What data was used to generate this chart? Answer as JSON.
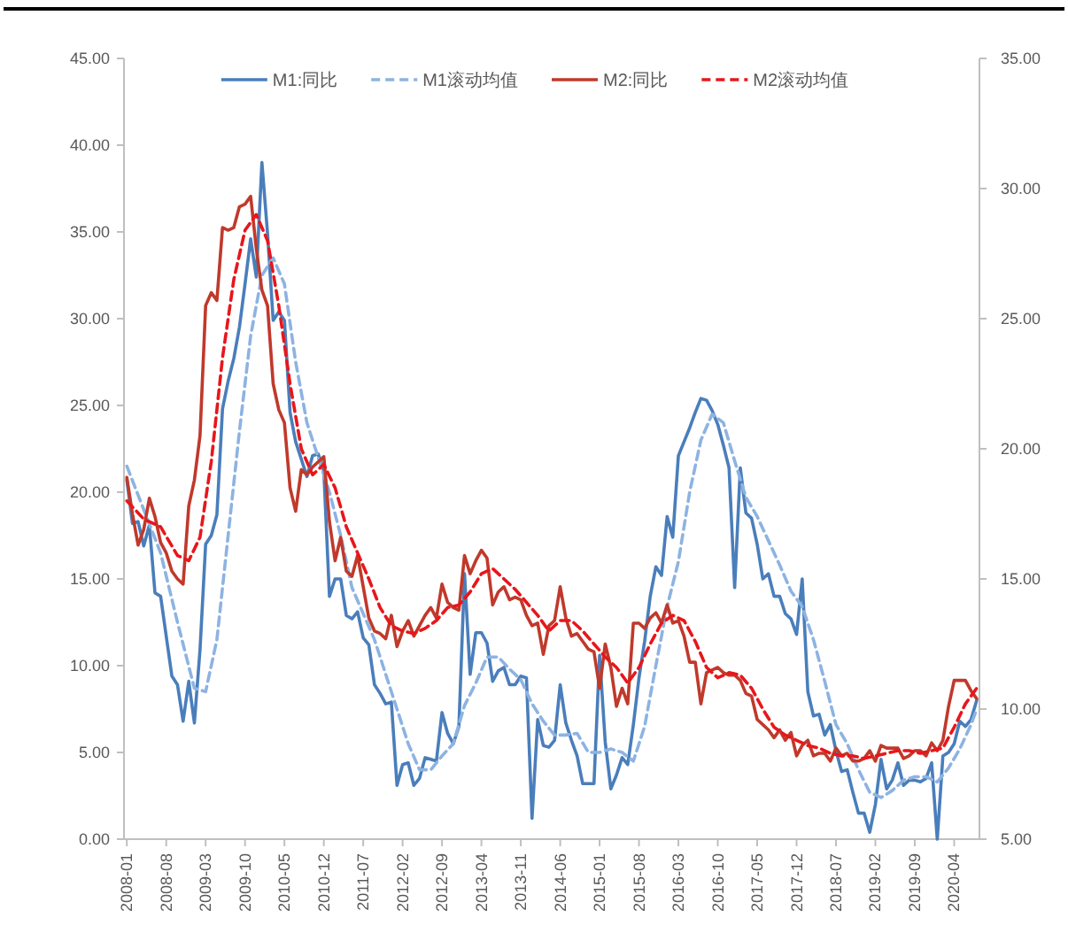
{
  "chart_data": {
    "type": "line",
    "legend": "top",
    "marker": "none",
    "xlim": [
      "2007-12-16",
      "2020-08-16"
    ],
    "xticks": [
      "2008-01",
      "2008-08",
      "2009-03",
      "2009-10",
      "2010-05",
      "2010-12",
      "2011-07",
      "2012-02",
      "2012-09",
      "2013-04",
      "2013-11",
      "2014-06",
      "2015-01",
      "2015-08",
      "2016-03",
      "2016-10",
      "2017-05",
      "2017-12",
      "2018-07",
      "2019-02",
      "2019-09",
      "2020-04"
    ],
    "ylim": [
      0,
      45
    ],
    "yticks": [
      {
        "value": 0,
        "label": "0.00"
      },
      {
        "value": 5,
        "label": "5.00"
      },
      {
        "value": 10,
        "label": "10.00"
      },
      {
        "value": 15,
        "label": "15.00"
      },
      {
        "value": 20,
        "label": "20.00"
      },
      {
        "value": 25,
        "label": "25.00"
      },
      {
        "value": 30,
        "label": "30.00"
      },
      {
        "value": 35,
        "label": "35.00"
      },
      {
        "value": 40,
        "label": "40.00"
      },
      {
        "value": 45,
        "label": "45.00"
      }
    ],
    "y2lim": [
      5,
      35
    ],
    "y2ticks": [
      {
        "value": 5,
        "label": "5.00"
      },
      {
        "value": 10,
        "label": "10.00"
      },
      {
        "value": 15,
        "label": "15.00"
      },
      {
        "value": 20,
        "label": "20.00"
      },
      {
        "value": 25,
        "label": "25.00"
      },
      {
        "value": 30,
        "label": "30.00"
      },
      {
        "value": 35,
        "label": "35.00"
      }
    ],
    "x": [
      "2008-01",
      "2008-02",
      "2008-03",
      "2008-04",
      "2008-05",
      "2008-06",
      "2008-07",
      "2008-08",
      "2008-09",
      "2008-10",
      "2008-11",
      "2008-12",
      "2009-01",
      "2009-02",
      "2009-03",
      "2009-04",
      "2009-05",
      "2009-06",
      "2009-07",
      "2009-08",
      "2009-09",
      "2009-10",
      "2009-11",
      "2009-12",
      "2010-01",
      "2010-02",
      "2010-03",
      "2010-04",
      "2010-05",
      "2010-06",
      "2010-07",
      "2010-08",
      "2010-09",
      "2010-10",
      "2010-11",
      "2010-12",
      "2011-01",
      "2011-02",
      "2011-03",
      "2011-04",
      "2011-05",
      "2011-06",
      "2011-07",
      "2011-08",
      "2011-09",
      "2011-10",
      "2011-11",
      "2011-12",
      "2012-01",
      "2012-02",
      "2012-03",
      "2012-04",
      "2012-05",
      "2012-06",
      "2012-07",
      "2012-08",
      "2012-09",
      "2012-10",
      "2012-11",
      "2012-12",
      "2013-01",
      "2013-02",
      "2013-03",
      "2013-04",
      "2013-05",
      "2013-06",
      "2013-07",
      "2013-08",
      "2013-09",
      "2013-10",
      "2013-11",
      "2013-12",
      "2014-01",
      "2014-02",
      "2014-03",
      "2014-04",
      "2014-05",
      "2014-06",
      "2014-07",
      "2014-08",
      "2014-09",
      "2014-10",
      "2014-11",
      "2014-12",
      "2015-01",
      "2015-02",
      "2015-03",
      "2015-04",
      "2015-05",
      "2015-06",
      "2015-07",
      "2015-08",
      "2015-09",
      "2015-10",
      "2015-11",
      "2015-12",
      "2016-01",
      "2016-02",
      "2016-03",
      "2016-04",
      "2016-05",
      "2016-06",
      "2016-07",
      "2016-08",
      "2016-09",
      "2016-10",
      "2016-11",
      "2016-12",
      "2017-01",
      "2017-02",
      "2017-03",
      "2017-04",
      "2017-05",
      "2017-06",
      "2017-07",
      "2017-08",
      "2017-09",
      "2017-10",
      "2017-11",
      "2017-12",
      "2018-01",
      "2018-02",
      "2018-03",
      "2018-04",
      "2018-05",
      "2018-06",
      "2018-07",
      "2018-08",
      "2018-09",
      "2018-10",
      "2018-11",
      "2018-12",
      "2019-01",
      "2019-02",
      "2019-03",
      "2019-04",
      "2019-05",
      "2019-06",
      "2019-07",
      "2019-08",
      "2019-09",
      "2019-10",
      "2019-11",
      "2019-12",
      "2020-01",
      "2020-02",
      "2020-03",
      "2020-04",
      "2020-05",
      "2020-06",
      "2020-07",
      "2020-08"
    ],
    "series": [
      {
        "name": "M1:同比",
        "color": "#4a7ebb",
        "line_style": "solid",
        "values": [
          20.7,
          18.2,
          18.3,
          16.9,
          18.1,
          14.2,
          14.0,
          11.7,
          9.4,
          8.9,
          6.8,
          9.1,
          6.7,
          10.9,
          17.0,
          17.5,
          18.7,
          24.8,
          26.4,
          27.7,
          29.5,
          32.0,
          34.6,
          32.4,
          39.0,
          34.9,
          29.9,
          30.4,
          29.9,
          24.6,
          22.9,
          21.9,
          20.9,
          22.1,
          22.2,
          21.2,
          14.0,
          15.0,
          15.0,
          12.9,
          12.7,
          13.1,
          11.6,
          11.2,
          8.9,
          8.4,
          7.8,
          7.9,
          3.1,
          4.3,
          4.4,
          3.1,
          3.5,
          4.7,
          4.6,
          4.5,
          7.3,
          6.1,
          5.5,
          6.5,
          15.3,
          9.5,
          11.9,
          11.9,
          11.3,
          9.1,
          9.7,
          9.9,
          8.9,
          8.9,
          9.4,
          9.3,
          1.2,
          6.9,
          5.4,
          5.3,
          5.7,
          8.9,
          6.7,
          5.7,
          4.8,
          3.2,
          3.2,
          3.2,
          10.6,
          5.6,
          2.9,
          3.7,
          4.7,
          4.3,
          6.6,
          9.3,
          11.4,
          14.0,
          15.7,
          15.2,
          18.6,
          17.4,
          22.1,
          22.9,
          23.7,
          24.6,
          25.4,
          25.3,
          24.7,
          23.9,
          22.7,
          21.4,
          14.5,
          21.4,
          18.8,
          18.5,
          17.0,
          15.0,
          15.3,
          14.0,
          14.0,
          13.0,
          12.7,
          11.8,
          15.0,
          8.5,
          7.1,
          7.2,
          6.0,
          6.6,
          5.1,
          3.9,
          4.0,
          2.7,
          1.5,
          1.5,
          0.4,
          2.0,
          4.6,
          2.9,
          3.4,
          4.4,
          3.1,
          3.4,
          3.4,
          3.3,
          3.5,
          4.4,
          0.0,
          4.8,
          5.0,
          5.5,
          6.8,
          6.5,
          6.9,
          8.0
        ]
      },
      {
        "name": "M1滚动均值",
        "color": "#8db3e2",
        "line_style": "dashed",
        "x": [
          "2008-01",
          "2008-04",
          "2008-07",
          "2008-10",
          "2009-01",
          "2009-03",
          "2009-05",
          "2009-07",
          "2009-09",
          "2009-11",
          "2010-01",
          "2010-03",
          "2010-05",
          "2010-07",
          "2010-09",
          "2010-11",
          "2011-01",
          "2011-03",
          "2011-05",
          "2011-07",
          "2011-09",
          "2011-11",
          "2012-01",
          "2012-03",
          "2012-05",
          "2012-07",
          "2012-09",
          "2012-11",
          "2013-01",
          "2013-03",
          "2013-05",
          "2013-07",
          "2013-09",
          "2013-11",
          "2014-01",
          "2014-03",
          "2014-05",
          "2014-07",
          "2014-09",
          "2014-11",
          "2015-01",
          "2015-03",
          "2015-05",
          "2015-07",
          "2015-09",
          "2015-11",
          "2016-01",
          "2016-03",
          "2016-05",
          "2016-07",
          "2016-09",
          "2016-11",
          "2017-01",
          "2017-03",
          "2017-05",
          "2017-07",
          "2017-09",
          "2017-11",
          "2018-01",
          "2018-03",
          "2018-05",
          "2018-07",
          "2018-09",
          "2018-11",
          "2019-01",
          "2019-03",
          "2019-05",
          "2019-07",
          "2019-09",
          "2019-11",
          "2020-01",
          "2020-03",
          "2020-05",
          "2020-07",
          "2020-08"
        ],
        "values": [
          21.5,
          19.0,
          16.5,
          12.5,
          8.7,
          8.5,
          11.5,
          17.5,
          23.5,
          29.0,
          32.5,
          33.5,
          32.0,
          27.5,
          24.0,
          22.0,
          20.0,
          17.5,
          14.5,
          13.0,
          11.5,
          9.5,
          7.5,
          5.5,
          4.0,
          4.0,
          4.8,
          5.5,
          7.7,
          9.0,
          10.5,
          10.5,
          9.8,
          9.2,
          7.8,
          6.8,
          6.0,
          6.0,
          6.1,
          5.0,
          5.0,
          5.2,
          5.0,
          4.5,
          6.5,
          10.0,
          13.4,
          16.0,
          20.0,
          23.0,
          24.5,
          24.0,
          21.8,
          19.7,
          18.6,
          17.2,
          15.8,
          14.3,
          13.4,
          11.5,
          9.1,
          6.6,
          5.5,
          4.0,
          2.7,
          2.4,
          2.8,
          3.4,
          3.6,
          3.6,
          3.3,
          4.1,
          5.2,
          6.6,
          7.5
        ]
      },
      {
        "name": "M2:同比",
        "color": "#c0392b",
        "line_style": "solid",
        "axis": "y2",
        "values": [
          18.9,
          17.5,
          16.3,
          16.9,
          18.1,
          17.4,
          16.4,
          16.0,
          15.3,
          15.0,
          14.8,
          17.8,
          18.8,
          20.5,
          25.5,
          26.0,
          25.7,
          28.5,
          28.4,
          28.5,
          29.3,
          29.4,
          29.7,
          27.7,
          26.1,
          25.5,
          22.5,
          21.5,
          21.0,
          18.5,
          17.6,
          19.2,
          19.0,
          19.3,
          19.5,
          19.7,
          17.2,
          15.7,
          16.6,
          15.3,
          15.1,
          15.9,
          14.7,
          13.5,
          13.0,
          12.9,
          12.7,
          13.6,
          12.4,
          13.0,
          13.4,
          12.8,
          13.2,
          13.6,
          13.9,
          13.5,
          14.8,
          14.1,
          13.9,
          13.8,
          15.9,
          15.2,
          15.7,
          16.1,
          15.8,
          14.0,
          14.5,
          14.7,
          14.2,
          14.3,
          14.2,
          13.6,
          13.2,
          13.3,
          12.1,
          13.2,
          13.4,
          14.7,
          13.5,
          12.8,
          12.9,
          12.6,
          12.3,
          12.2,
          10.8,
          12.5,
          11.6,
          10.1,
          10.8,
          10.2,
          13.3,
          13.3,
          13.1,
          13.5,
          13.7,
          13.3,
          14.0,
          13.3,
          13.4,
          12.8,
          11.8,
          11.8,
          10.2,
          11.4,
          11.5,
          11.6,
          11.4,
          11.3,
          11.3,
          11.1,
          10.6,
          10.5,
          9.6,
          9.4,
          9.2,
          8.9,
          9.2,
          8.8,
          9.1,
          8.2,
          8.6,
          8.8,
          8.2,
          8.3,
          8.3,
          8.0,
          8.5,
          8.2,
          8.3,
          8.0,
          8.0,
          8.1,
          8.4,
          8.0,
          8.6,
          8.5,
          8.5,
          8.5,
          8.1,
          8.2,
          8.4,
          8.4,
          8.2,
          8.7,
          8.4,
          8.8,
          10.1,
          11.1,
          11.1,
          11.1,
          10.7,
          10.4
        ]
      },
      {
        "name": "M2滚动均值",
        "color": "#e8161b",
        "line_style": "dashed",
        "axis": "y2",
        "x": [
          "2008-01",
          "2008-04",
          "2008-07",
          "2008-10",
          "2008-12",
          "2009-02",
          "2009-04",
          "2009-06",
          "2009-08",
          "2009-10",
          "2009-12",
          "2010-02",
          "2010-04",
          "2010-06",
          "2010-08",
          "2010-10",
          "2010-12",
          "2011-02",
          "2011-04",
          "2011-06",
          "2011-08",
          "2011-10",
          "2011-12",
          "2012-02",
          "2012-04",
          "2012-06",
          "2012-08",
          "2012-10",
          "2012-12",
          "2013-02",
          "2013-04",
          "2013-06",
          "2013-08",
          "2013-10",
          "2013-12",
          "2014-02",
          "2014-04",
          "2014-06",
          "2014-08",
          "2014-10",
          "2014-12",
          "2015-02",
          "2015-04",
          "2015-06",
          "2015-08",
          "2015-10",
          "2015-12",
          "2016-02",
          "2016-04",
          "2016-06",
          "2016-08",
          "2016-10",
          "2016-12",
          "2017-02",
          "2017-04",
          "2017-06",
          "2017-08",
          "2017-10",
          "2017-12",
          "2018-02",
          "2018-04",
          "2018-06",
          "2018-08",
          "2018-10",
          "2018-12",
          "2019-02",
          "2019-04",
          "2019-06",
          "2019-08",
          "2019-10",
          "2019-12",
          "2020-02",
          "2020-04",
          "2020-06",
          "2020-08"
        ],
        "values": [
          18.0,
          17.3,
          17.0,
          15.9,
          15.7,
          16.6,
          19.5,
          23.5,
          26.5,
          28.4,
          29.0,
          28.0,
          25.5,
          22.5,
          20.0,
          19.0,
          19.4,
          18.5,
          17.0,
          16.0,
          15.0,
          13.9,
          13.2,
          13.0,
          12.9,
          13.1,
          13.4,
          13.9,
          14.0,
          14.5,
          15.2,
          15.4,
          15.0,
          14.6,
          14.1,
          13.6,
          13.0,
          13.4,
          13.4,
          13.0,
          12.5,
          12.0,
          11.6,
          11.0,
          11.6,
          12.5,
          13.3,
          13.6,
          13.4,
          12.6,
          11.6,
          11.2,
          11.4,
          11.3,
          10.8,
          10.0,
          9.3,
          9.0,
          8.8,
          8.6,
          8.5,
          8.3,
          8.2,
          8.2,
          8.1,
          8.2,
          8.3,
          8.4,
          8.4,
          8.3,
          8.4,
          8.5,
          9.3,
          10.2,
          10.8
        ]
      }
    ]
  }
}
